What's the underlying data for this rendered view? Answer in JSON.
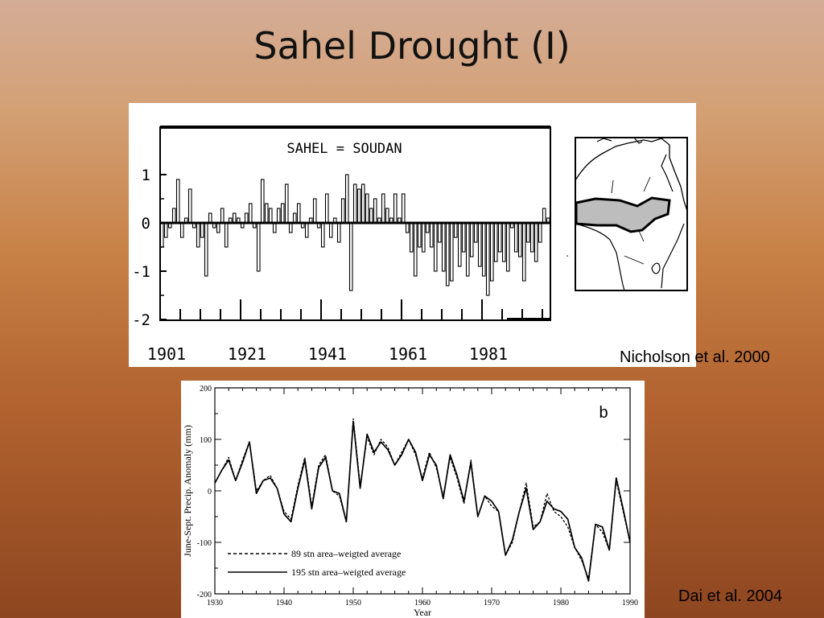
{
  "slide": {
    "title": "Sahel Drought (I)",
    "citation_top": "Nicholson et al. 2000",
    "citation_bottom": "Dai et al. 2004"
  },
  "chart_data": [
    {
      "type": "bar",
      "title": "SAHEL = SOUDAN",
      "xlabel": "",
      "ylabel": "",
      "ylim": [
        -2,
        2
      ],
      "xlim": [
        1901,
        1998
      ],
      "xticks": [
        "1901",
        "1921",
        "1941",
        "1961",
        "1981"
      ],
      "yticks": [
        "1",
        "0",
        "-1",
        "-2"
      ],
      "x": [
        1901,
        1902,
        1903,
        1904,
        1905,
        1906,
        1907,
        1908,
        1909,
        1910,
        1911,
        1912,
        1913,
        1914,
        1915,
        1916,
        1917,
        1918,
        1919,
        1920,
        1921,
        1922,
        1923,
        1924,
        1925,
        1926,
        1927,
        1928,
        1929,
        1930,
        1931,
        1932,
        1933,
        1934,
        1935,
        1936,
        1937,
        1938,
        1939,
        1940,
        1941,
        1942,
        1943,
        1944,
        1945,
        1946,
        1947,
        1948,
        1949,
        1950,
        1951,
        1952,
        1953,
        1954,
        1955,
        1956,
        1957,
        1958,
        1959,
        1960,
        1961,
        1962,
        1963,
        1964,
        1965,
        1966,
        1967,
        1968,
        1969,
        1970,
        1971,
        1972,
        1973,
        1974,
        1975,
        1976,
        1977,
        1978,
        1979,
        1980,
        1981,
        1982,
        1983,
        1984,
        1985,
        1986,
        1987,
        1988,
        1989,
        1990,
        1991,
        1992,
        1993,
        1994,
        1995,
        1996,
        1997
      ],
      "values": [
        -0.5,
        -0.3,
        -0.1,
        0.3,
        0.9,
        -0.3,
        0.1,
        0.7,
        -0.1,
        -0.5,
        -0.3,
        -1.1,
        0.2,
        -0.1,
        -0.2,
        0.3,
        -0.5,
        0.1,
        0.2,
        0.1,
        -0.1,
        0.2,
        0.4,
        -0.1,
        -1.0,
        0.9,
        0.4,
        0.3,
        -0.2,
        0.3,
        0.4,
        0.8,
        -0.2,
        0.2,
        0.4,
        -0.1,
        -0.3,
        0.1,
        0.5,
        -0.1,
        -0.5,
        0.6,
        -0.3,
        0.1,
        -0.4,
        0.5,
        1.0,
        -1.4,
        0.8,
        0.7,
        0.8,
        0.6,
        0.3,
        0.5,
        0.1,
        0.6,
        0.3,
        0.1,
        0.6,
        0.1,
        0.6,
        -0.2,
        -0.6,
        -1.1,
        -0.5,
        -0.6,
        -0.2,
        -0.5,
        -1.0,
        -0.4,
        -1.0,
        -1.3,
        -1.2,
        -0.3,
        -0.9,
        -0.6,
        -1.1,
        -0.7,
        -0.4,
        -0.9,
        -1.1,
        -1.5,
        -1.2,
        -0.8,
        -0.6,
        -0.8,
        -1.0,
        -0.1,
        -0.6,
        -0.7,
        -1.2,
        -0.4,
        -0.6,
        -0.8,
        -0.4,
        0.3,
        0.1
      ],
      "grid": false,
      "inset_map": "Africa map with shaded Sahel band"
    },
    {
      "type": "line",
      "panel_label": "b",
      "xlabel": "Year",
      "ylabel": "June-Sept. Precip. Anomaly (mm)",
      "xlim": [
        1930,
        1990
      ],
      "ylim": [
        -200,
        200
      ],
      "xticks": [
        "1930",
        "1940",
        "1950",
        "1960",
        "1970",
        "1980",
        "1990"
      ],
      "yticks": [
        "200",
        "100",
        "0",
        "-100",
        "-200"
      ],
      "legend_position": "bottom-left",
      "x": [
        1930,
        1931,
        1932,
        1933,
        1934,
        1935,
        1936,
        1937,
        1938,
        1939,
        1940,
        1941,
        1942,
        1943,
        1944,
        1945,
        1946,
        1947,
        1948,
        1949,
        1950,
        1951,
        1952,
        1953,
        1954,
        1955,
        1956,
        1957,
        1958,
        1959,
        1960,
        1961,
        1962,
        1963,
        1964,
        1965,
        1966,
        1967,
        1968,
        1969,
        1970,
        1971,
        1972,
        1973,
        1974,
        1975,
        1976,
        1977,
        1978,
        1979,
        1980,
        1981,
        1982,
        1983,
        1984,
        1985,
        1986,
        1987,
        1988,
        1989,
        1990
      ],
      "series": [
        {
          "name": "89 stn area–weigted average",
          "style": "dashed",
          "values": [
            15,
            40,
            65,
            20,
            60,
            95,
            0,
            20,
            30,
            5,
            -40,
            -55,
            10,
            65,
            -30,
            50,
            70,
            0,
            -10,
            -60,
            140,
            10,
            105,
            70,
            100,
            85,
            50,
            75,
            100,
            70,
            25,
            75,
            45,
            -10,
            65,
            25,
            -25,
            60,
            -50,
            -10,
            -30,
            -40,
            -125,
            -100,
            -40,
            15,
            -70,
            -60,
            -5,
            -40,
            -50,
            -70,
            -110,
            -135,
            -170,
            -65,
            -80,
            -115,
            20,
            -40,
            -100
          ]
        },
        {
          "name": "195 stn area–weigted average",
          "style": "solid",
          "values": [
            15,
            40,
            60,
            20,
            55,
            95,
            -5,
            20,
            25,
            5,
            -45,
            -60,
            5,
            60,
            -35,
            45,
            65,
            0,
            -5,
            -60,
            135,
            5,
            110,
            75,
            95,
            80,
            50,
            70,
            100,
            75,
            20,
            70,
            50,
            -15,
            70,
            30,
            -20,
            55,
            -50,
            -10,
            -20,
            -40,
            -125,
            -95,
            -40,
            5,
            -75,
            -60,
            -20,
            -35,
            -40,
            -55,
            -110,
            -130,
            -175,
            -65,
            -70,
            -115,
            25,
            -35,
            -100
          ]
        }
      ]
    }
  ]
}
